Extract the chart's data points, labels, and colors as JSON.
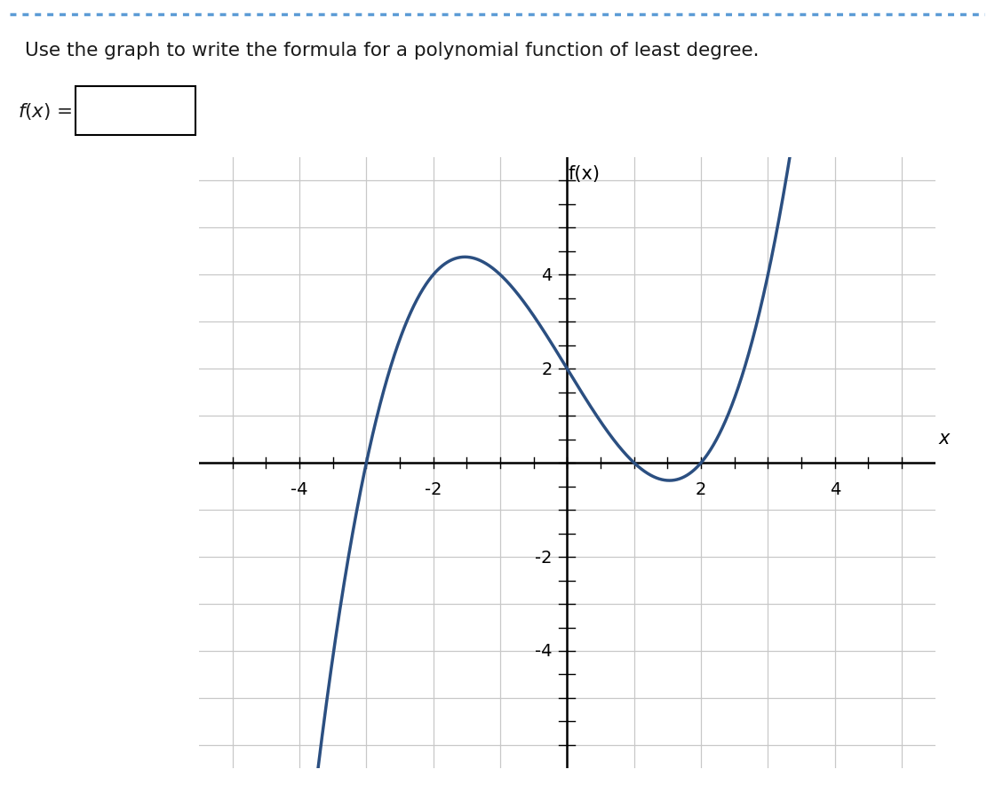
{
  "title": "Use the graph to write the formula for a polynomial function of least degree.",
  "fx_label": "f(x)",
  "x_label": "x",
  "xlim": [
    -5.5,
    5.5
  ],
  "ylim": [
    -6.5,
    6.5
  ],
  "xtick_labels": [
    -4,
    -2,
    2,
    4
  ],
  "ytick_labels": [
    -4,
    -2,
    2,
    4
  ],
  "curve_color": "#2b4f81",
  "curve_linewidth": 2.5,
  "grid_color": "#c8c8c8",
  "background_color": "#ffffff",
  "roots": [
    -3,
    1,
    2
  ],
  "leading_coeff": 0.333333,
  "axis_color": "#000000",
  "title_color": "#1a1a1a",
  "border_dot_color": "#5b9bd5",
  "x_plot_min": -4.5,
  "x_plot_max": 3.5
}
